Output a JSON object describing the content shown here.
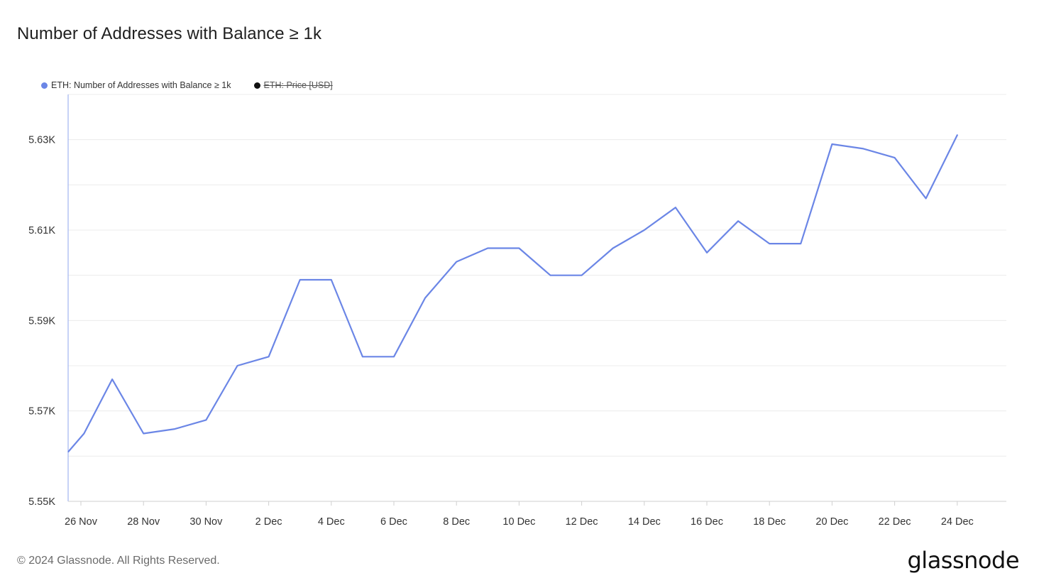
{
  "header": {
    "title": "Number of Addresses with Balance ≥ 1k"
  },
  "legend": [
    {
      "label": "ETH: Number of Addresses with Balance ≥ 1k",
      "color": "#6b86e6",
      "active": true
    },
    {
      "label": "ETH: Price [USD]",
      "color": "#111111",
      "active": false
    }
  ],
  "footer": {
    "copyright": "© 2024 Glassnode. All Rights Reserved.",
    "brand": "glassnode"
  },
  "chart_data": {
    "type": "line",
    "title": "Number of Addresses with Balance ≥ 1k",
    "xlabel": "",
    "ylabel": "",
    "grid": true,
    "legend_placement": "top-left",
    "ylim": [
      5550,
      5640
    ],
    "y_ticks": [
      5550,
      5570,
      5590,
      5610,
      5630
    ],
    "y_tick_labels": [
      "5.55K",
      "5.57K",
      "5.59K",
      "5.61K",
      "5.63K"
    ],
    "x_tick_labels": [
      "26 Nov",
      "28 Nov",
      "30 Nov",
      "2 Dec",
      "4 Dec",
      "6 Dec",
      "8 Dec",
      "10 Dec",
      "12 Dec",
      "14 Dec",
      "16 Dec",
      "18 Dec",
      "20 Dec",
      "22 Dec",
      "24 Dec"
    ],
    "x_tick_days": [
      0,
      2,
      4,
      6,
      8,
      10,
      12,
      14,
      16,
      18,
      20,
      22,
      24,
      26,
      28
    ],
    "x_days": [
      -0.4,
      0.1,
      1,
      2,
      3,
      4,
      5,
      6,
      7,
      8,
      9,
      10,
      11,
      12,
      13,
      14,
      15,
      16,
      17,
      18,
      19,
      20,
      21,
      22,
      23,
      24,
      25,
      26,
      27,
      28
    ],
    "series": [
      {
        "name": "ETH: Number of Addresses with Balance ≥ 1k",
        "color": "#6b86e6",
        "values": [
          5561,
          5565,
          5577,
          5565,
          5566,
          5568,
          5580,
          5582,
          5599,
          5599,
          5582,
          5582,
          5595,
          5603,
          5606,
          5606,
          5600,
          5600,
          5606,
          5610,
          5615,
          5605,
          5612,
          5607,
          5607,
          5629,
          5628,
          5626,
          5617,
          5631
        ]
      }
    ]
  }
}
